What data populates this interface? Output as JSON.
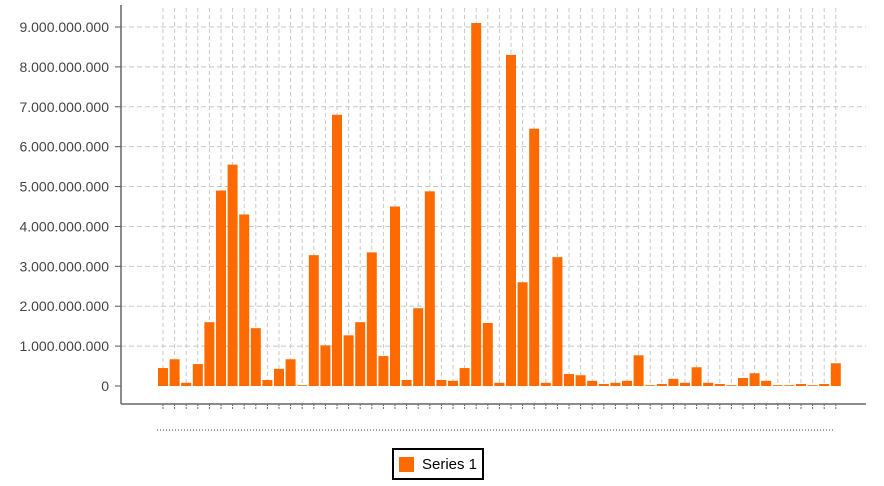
{
  "chart_data": {
    "type": "bar",
    "title": "",
    "xlabel": "",
    "ylabel": "",
    "ylim": [
      0,
      9000000000
    ],
    "yticks": [
      0,
      1000000000,
      2000000000,
      3000000000,
      4000000000,
      5000000000,
      6000000000,
      7000000000,
      8000000000,
      9000000000
    ],
    "ytick_labels": [
      "0",
      "1.000.000.000",
      "2.000.000.000",
      "3.000.000.000",
      "4.000.000.000",
      "5.000.000.000",
      "6.000.000.000",
      "7.000.000.000",
      "8.000.000.000",
      "9.000.000.000"
    ],
    "grid": true,
    "legend_position": "bottom",
    "bar_color": "#FF6A00",
    "series": [
      {
        "name": "Series 1",
        "values": [
          450000000,
          670000000,
          80000000,
          550000000,
          1600000000,
          4900000000,
          5550000000,
          4300000000,
          1450000000,
          150000000,
          430000000,
          670000000,
          20000000,
          3280000000,
          1020000000,
          6800000000,
          1270000000,
          1600000000,
          3350000000,
          750000000,
          4500000000,
          150000000,
          1950000000,
          4880000000,
          150000000,
          130000000,
          450000000,
          9100000000,
          1580000000,
          80000000,
          8300000000,
          2600000000,
          6450000000,
          80000000,
          3230000000,
          300000000,
          270000000,
          130000000,
          50000000,
          80000000,
          130000000,
          770000000,
          20000000,
          50000000,
          180000000,
          80000000,
          470000000,
          80000000,
          50000000,
          20000000,
          200000000,
          320000000,
          130000000,
          20000000,
          20000000,
          50000000,
          20000000,
          50000000,
          570000000
        ]
      }
    ]
  }
}
